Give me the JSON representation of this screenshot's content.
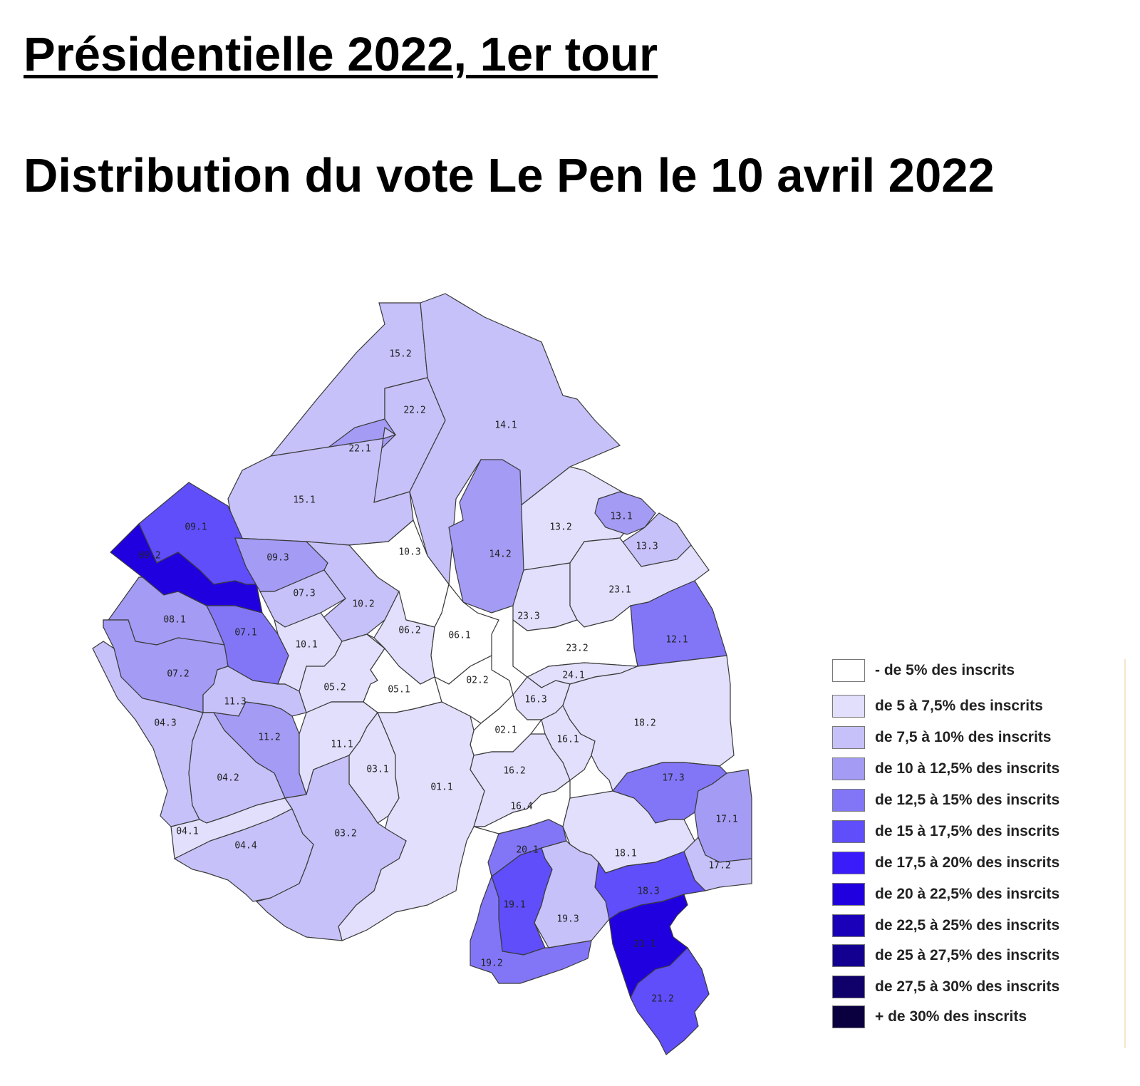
{
  "header": {
    "title": "Présidentielle 2022, 1er tour",
    "subtitle": "Distribution du vote Le Pen le 10 avril 2022"
  },
  "legend": [
    {
      "label": "- de 5% des inscrits",
      "color": "#ffffff"
    },
    {
      "label": "de 5 à 7,5% des inscrits",
      "color": "#e1dffb"
    },
    {
      "label": "de 7,5 à 10% des inscrits",
      "color": "#c6c1f8"
    },
    {
      "label": "de 10 à 12,5% des inscrits",
      "color": "#a49bf4"
    },
    {
      "label": "de 12,5 à 15% des inscrits",
      "color": "#8276f7"
    },
    {
      "label": "de 15 à 17,5% des inscrits",
      "color": "#5f4ef9"
    },
    {
      "label": "de 17,5 à 20% des inscrits",
      "color": "#3a1cfb"
    },
    {
      "label": "de 20 à 22,5% des insrcits",
      "color": "#2100e0"
    },
    {
      "label": "de 22,5 à 25% des inscrits",
      "color": "#1a00b8"
    },
    {
      "label": "de 25 à 27,5% des inscrits",
      "color": "#140090"
    },
    {
      "label": "de 27,5 à 30% des inscrits",
      "color": "#10006a"
    },
    {
      "label": "+ de 30% des inscrits",
      "color": "#0a0040"
    }
  ],
  "zones": [
    {
      "id": "15.2",
      "cls": 2
    },
    {
      "id": "22.2",
      "cls": 2
    },
    {
      "id": "22.1",
      "cls": 3
    },
    {
      "id": "14.1",
      "cls": 2
    },
    {
      "id": "15.1",
      "cls": 2
    },
    {
      "id": "13.2",
      "cls": 1
    },
    {
      "id": "13.1",
      "cls": 3
    },
    {
      "id": "13.3",
      "cls": 2
    },
    {
      "id": "14.2",
      "cls": 3
    },
    {
      "id": "10.3",
      "cls": 0
    },
    {
      "id": "09.1",
      "cls": 5
    },
    {
      "id": "09.2",
      "cls": 7
    },
    {
      "id": "09.3",
      "cls": 3
    },
    {
      "id": "07.3",
      "cls": 2
    },
    {
      "id": "10.2",
      "cls": 2
    },
    {
      "id": "06.2",
      "cls": 1
    },
    {
      "id": "06.1",
      "cls": 0
    },
    {
      "id": "23.3",
      "cls": 1
    },
    {
      "id": "23.1",
      "cls": 1
    },
    {
      "id": "12.1",
      "cls": 4
    },
    {
      "id": "23.2",
      "cls": 0
    },
    {
      "id": "08.1",
      "cls": 3
    },
    {
      "id": "07.1",
      "cls": 4
    },
    {
      "id": "10.1",
      "cls": 1
    },
    {
      "id": "07.2",
      "cls": 3
    },
    {
      "id": "11.3",
      "cls": 2
    },
    {
      "id": "05.2",
      "cls": 1
    },
    {
      "id": "05.1",
      "cls": 0
    },
    {
      "id": "02.2",
      "cls": 0
    },
    {
      "id": "24.1",
      "cls": 1
    },
    {
      "id": "16.3",
      "cls": 1
    },
    {
      "id": "04.3",
      "cls": 2
    },
    {
      "id": "11.2",
      "cls": 3
    },
    {
      "id": "11.1",
      "cls": 1
    },
    {
      "id": "02.1",
      "cls": 0
    },
    {
      "id": "16.1",
      "cls": 1
    },
    {
      "id": "18.2",
      "cls": 1
    },
    {
      "id": "03.1",
      "cls": 1
    },
    {
      "id": "01.1",
      "cls": 1
    },
    {
      "id": "16.2",
      "cls": 1
    },
    {
      "id": "04.2",
      "cls": 2
    },
    {
      "id": "17.3",
      "cls": 4
    },
    {
      "id": "16.4",
      "cls": 0
    },
    {
      "id": "17.1",
      "cls": 3
    },
    {
      "id": "04.1",
      "cls": 1
    },
    {
      "id": "04.4",
      "cls": 2
    },
    {
      "id": "03.2",
      "cls": 2
    },
    {
      "id": "20.1",
      "cls": 4
    },
    {
      "id": "18.1",
      "cls": 1
    },
    {
      "id": "17.2",
      "cls": 2
    },
    {
      "id": "19.1",
      "cls": 5
    },
    {
      "id": "18.3",
      "cls": 5
    },
    {
      "id": "19.3",
      "cls": 2
    },
    {
      "id": "21.1",
      "cls": 7
    },
    {
      "id": "19.2",
      "cls": 4
    },
    {
      "id": "21.2",
      "cls": 5
    }
  ]
}
